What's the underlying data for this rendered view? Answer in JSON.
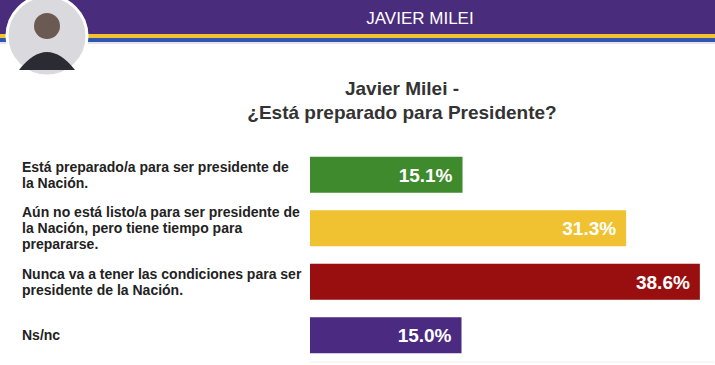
{
  "chart_data": {
    "type": "bar",
    "orientation": "horizontal",
    "header": "JAVIER MILEI",
    "title": "Javier Milei -",
    "subtitle": "¿Está preparado para Presidente?",
    "categories": [
      "Está preparado/a para ser presidente de la Nación.",
      "Aún no está listo/a para ser presidente de la Nación, pero tiene tiempo para prepararse.",
      "Nunca va a tener las condiciones para ser presidente de la Nación.",
      "Ns/nc"
    ],
    "values": [
      15.1,
      31.3,
      38.6,
      15.0
    ],
    "value_labels": [
      "15.1%",
      "31.3%",
      "38.6%",
      "15.0%"
    ],
    "colors": [
      "#3e8a2c",
      "#f0c232",
      "#990f0f",
      "#4b2a82"
    ],
    "xlim": [
      0,
      40
    ],
    "data_labels": true,
    "tick_labels": false,
    "grid": false
  }
}
